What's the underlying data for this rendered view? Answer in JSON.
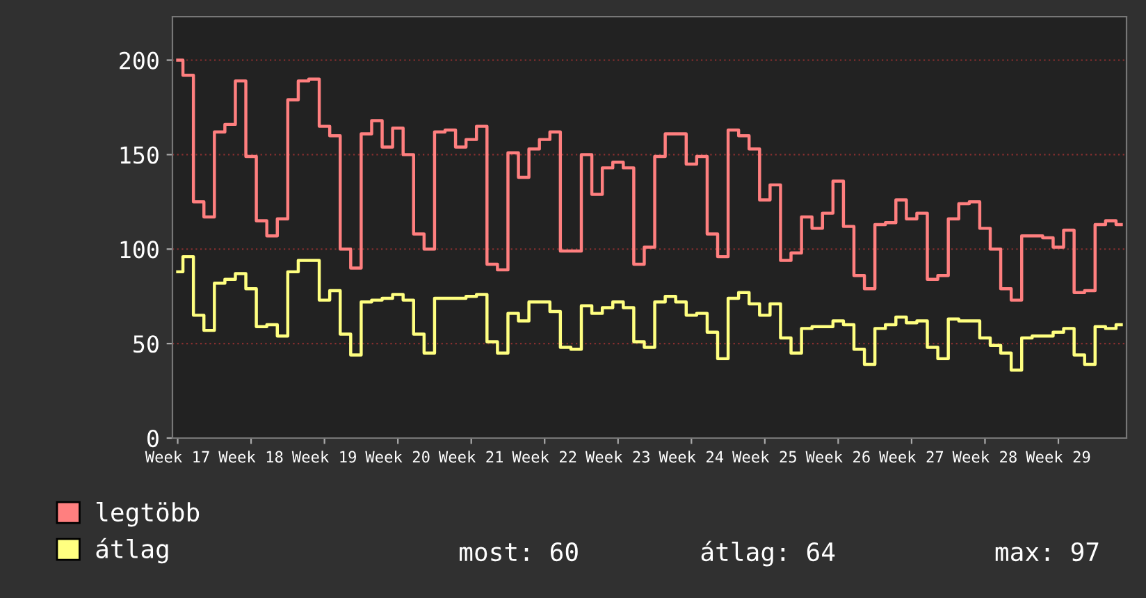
{
  "chart_data": {
    "type": "step",
    "categories": [
      "Week 17",
      null,
      null,
      null,
      null,
      null,
      null,
      "Week 18",
      null,
      null,
      null,
      null,
      null,
      null,
      "Week 19",
      null,
      null,
      null,
      null,
      null,
      null,
      "Week 20",
      null,
      null,
      null,
      null,
      null,
      null,
      "Week 21",
      null,
      null,
      null,
      null,
      null,
      null,
      "Week 22",
      null,
      null,
      null,
      null,
      null,
      null,
      "Week 23",
      null,
      null,
      null,
      null,
      null,
      null,
      "Week 24",
      null,
      null,
      null,
      null,
      null,
      null,
      "Week 25",
      null,
      null,
      null,
      null,
      null,
      null,
      "Week 26",
      null,
      null,
      null,
      null,
      null,
      null,
      "Week 27",
      null,
      null,
      null,
      null,
      null,
      null,
      "Week 28",
      null,
      null,
      null,
      null,
      null,
      null,
      "Week 29",
      null,
      null,
      null,
      null,
      null,
      null
    ],
    "series": [
      {
        "name": "legtöbb",
        "color": "#ff7f7f",
        "values": [
          200,
          192,
          125,
          117,
          162,
          166,
          189,
          149,
          115,
          107,
          116,
          179,
          189,
          190,
          165,
          160,
          100,
          90,
          161,
          168,
          154,
          164,
          150,
          108,
          100,
          162,
          163,
          154,
          158,
          165,
          92,
          89,
          151,
          138,
          153,
          158,
          162,
          99,
          99,
          150,
          129,
          143,
          146,
          143,
          92,
          101,
          149,
          161,
          161,
          145,
          149,
          108,
          96,
          163,
          160,
          153,
          126,
          134,
          94,
          98,
          117,
          111,
          119,
          136,
          112,
          86,
          79,
          113,
          114,
          126,
          116,
          119,
          84,
          86,
          116,
          124,
          125,
          111,
          100,
          79,
          73,
          107,
          107,
          106,
          101,
          110,
          77,
          78,
          113,
          115,
          113
        ]
      },
      {
        "name": "átlag",
        "color": "#ffff80",
        "values": [
          88,
          96,
          65,
          57,
          82,
          84,
          87,
          79,
          59,
          60,
          54,
          88,
          94,
          94,
          73,
          78,
          55,
          44,
          72,
          73,
          74,
          76,
          73,
          55,
          45,
          74,
          74,
          74,
          75,
          76,
          51,
          45,
          66,
          62,
          72,
          72,
          67,
          48,
          47,
          70,
          66,
          69,
          72,
          69,
          51,
          48,
          72,
          75,
          72,
          65,
          66,
          56,
          42,
          74,
          77,
          71,
          65,
          71,
          53,
          45,
          58,
          59,
          59,
          62,
          60,
          47,
          39,
          58,
          60,
          64,
          61,
          62,
          48,
          42,
          63,
          62,
          62,
          53,
          49,
          45,
          36,
          53,
          54,
          54,
          56,
          58,
          44,
          39,
          59,
          58,
          60
        ]
      }
    ],
    "ylim": [
      0,
      223
    ],
    "yticks": [
      0,
      50,
      100,
      150,
      200
    ],
    "grid": "y",
    "legend": "bottom left",
    "annotations": [
      "most: 60",
      "átlag: 64",
      "max: 97"
    ]
  }
}
